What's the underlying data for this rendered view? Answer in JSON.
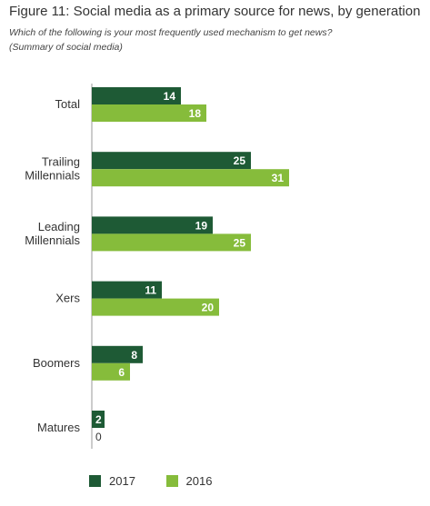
{
  "chart_data": {
    "type": "bar",
    "orientation": "horizontal",
    "title": "Figure 11: Social media as a primary source for news, by generation",
    "subtitle_lines": [
      "Which of the following is your most frequently used mechanism to get news?",
      "(Summary of social media)"
    ],
    "categories": [
      [
        "Total"
      ],
      [
        "Trailing",
        "Millennials"
      ],
      [
        "Leading",
        "Millennials"
      ],
      [
        "Xers"
      ],
      [
        "Boomers"
      ],
      [
        "Matures"
      ]
    ],
    "series": [
      {
        "name": "2017",
        "color": "#1e5a35",
        "values": [
          14,
          25,
          19,
          11,
          8,
          2
        ]
      },
      {
        "name": "2016",
        "color": "#86bc3b",
        "values": [
          18,
          31,
          25,
          20,
          6,
          0
        ]
      }
    ],
    "xlim": [
      0,
      31
    ],
    "grid": false,
    "legend_position": "bottom-left"
  }
}
